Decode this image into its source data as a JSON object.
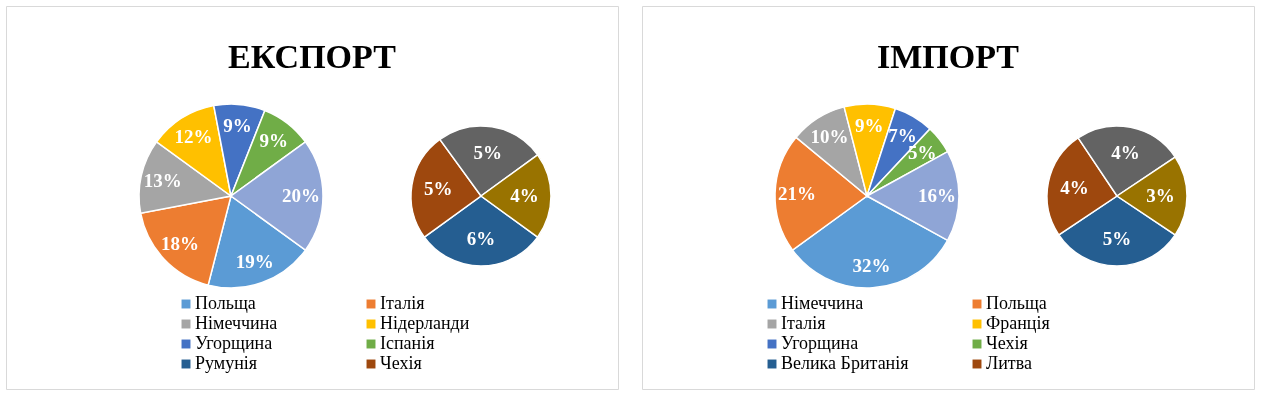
{
  "chart_data": [
    {
      "type": "pie",
      "title": "ЕКСПОРТ",
      "legend": "bottom",
      "categories": [
        "Польща",
        "Італія",
        "Німеччина",
        "Нідерланди",
        "Угорщина",
        "Іспанія",
        null
      ],
      "values": [
        19,
        18,
        13,
        12,
        9,
        9,
        20
      ],
      "value_labels": [
        "19%",
        "18%",
        "13%",
        "12%",
        "9%",
        "9%",
        "20%"
      ],
      "colors": [
        "#5b9bd5",
        "#ed7d31",
        "#a5a5a5",
        "#ffc000",
        "#4472c4",
        "#70ad47",
        "#8fa5d6"
      ]
    },
    {
      "type": "pie",
      "legend": "bottom",
      "categories": [
        "Румунія",
        "Чехія",
        null,
        null
      ],
      "values": [
        6,
        5,
        5,
        4
      ],
      "value_labels": [
        "6%",
        "5%",
        "5%",
        "4%"
      ],
      "colors": [
        "#255e91",
        "#9e480e",
        "#636363",
        "#997300"
      ]
    },
    {
      "type": "pie",
      "title": "ІМПОРТ",
      "legend": "bottom",
      "categories": [
        "Німеччина",
        "Польща",
        "Італія",
        "Франція",
        "Угорщина",
        "Чехія",
        null
      ],
      "values": [
        32,
        21,
        10,
        9,
        7,
        5,
        16
      ],
      "value_labels": [
        "32%",
        "21%",
        "10%",
        "9%",
        "7%",
        "5%",
        "16%"
      ],
      "colors": [
        "#5b9bd5",
        "#ed7d31",
        "#a5a5a5",
        "#ffc000",
        "#4472c4",
        "#70ad47",
        "#8fa5d6"
      ]
    },
    {
      "type": "pie",
      "legend": "bottom",
      "categories": [
        "Велика Британія",
        "Литва",
        null,
        null
      ],
      "values": [
        5,
        4,
        4,
        3
      ],
      "value_labels": [
        "5%",
        "4%",
        "4%",
        "3%"
      ],
      "colors": [
        "#255e91",
        "#9e480e",
        "#636363",
        "#997300"
      ]
    }
  ]
}
